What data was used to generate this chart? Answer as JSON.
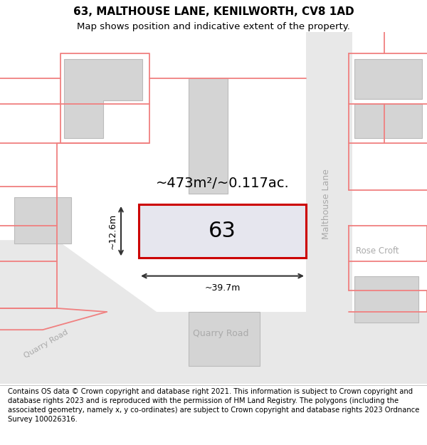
{
  "title": "63, MALTHOUSE LANE, KENILWORTH, CV8 1AD",
  "subtitle": "Map shows position and indicative extent of the property.",
  "footer": "Contains OS data © Crown copyright and database right 2021. This information is subject to Crown copyright and database rights 2023 and is reproduced with the permission of HM Land Registry. The polygons (including the associated geometry, namely x, y co-ordinates) are subject to Crown copyright and database rights 2023 Ordnance Survey 100026316.",
  "map_bg": "#f5f5f5",
  "building_fill": "#d4d4d4",
  "building_edge": "#bbbbbb",
  "parcel_fill": "#e6e6ee",
  "parcel_outline": "#cc0000",
  "boundary_color": "#f08080",
  "area_text": "~473m²/~0.117ac.",
  "width_text": "~39.7m",
  "height_text": "~12.6m",
  "number_text": "63",
  "road_label_malthouse": "Malthouse Lane",
  "road_label_quarry1": "Quarry Road",
  "road_label_quarry2": "Quarry Road",
  "road_label_rose": "Rose Croft",
  "title_fontsize": 11,
  "subtitle_fontsize": 9.5,
  "footer_fontsize": 7.2
}
